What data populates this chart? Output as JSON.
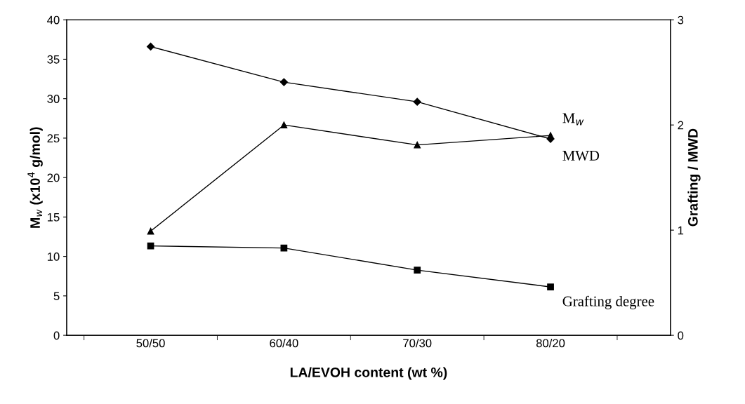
{
  "chart_data": {
    "type": "line",
    "xlabel": "LA/EVOH content (wt %)",
    "ylabel": "M$_{w}$ (x10$^{4}$ g/mol)",
    "y2label": "Grafting / MWD",
    "categories": [
      "50/50",
      "60/40",
      "70/30",
      "80/20"
    ],
    "ylim": [
      0,
      40
    ],
    "yticks": [
      0,
      5,
      10,
      15,
      20,
      25,
      30,
      35,
      40
    ],
    "y2lim": [
      0,
      3
    ],
    "y2ticks": [
      0,
      1,
      2,
      3
    ],
    "grid": false,
    "legend": false,
    "series": [
      {
        "name": "M$_{w}$",
        "color": "#000000",
        "marker": "diamond",
        "values": [
          36.6,
          32.1,
          29.6,
          24.9
        ]
      },
      {
        "name": "MWD",
        "color": "#000000",
        "marker": "triangle",
        "axis": "y2",
        "values": [
          0.99,
          2.0,
          1.81,
          1.9
        ]
      },
      {
        "name": "Grafting degree",
        "color": "#000000",
        "marker": "square",
        "axis": "y2",
        "values": [
          0.85,
          0.83,
          0.62,
          0.46
        ]
      }
    ]
  }
}
